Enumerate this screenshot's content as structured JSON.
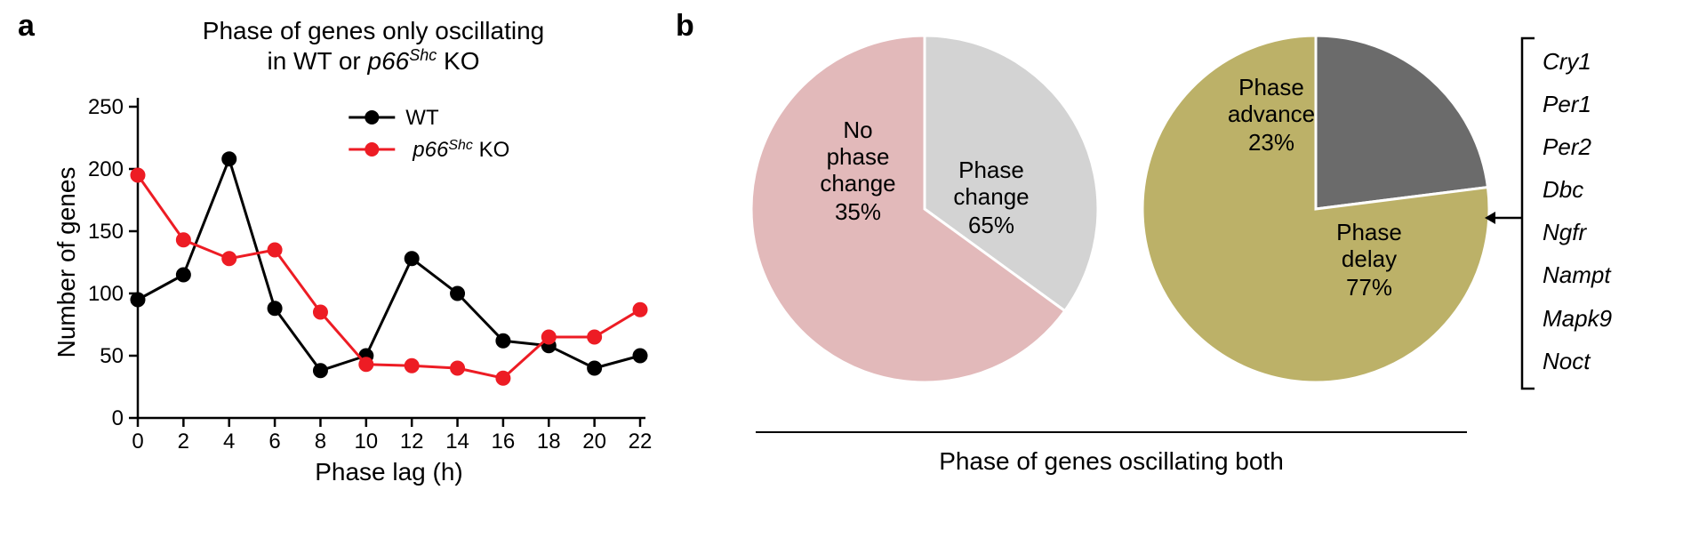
{
  "panelA": {
    "label": "a",
    "title_line1": "Phase of  genes only oscillating",
    "title_line2": "in WT or ",
    "title_gene": "p66",
    "title_gene_sup": "Shc",
    "title_after": " KO",
    "x_label": "Phase lag (h)",
    "y_label": "Number of genes",
    "xlim": [
      0,
      22
    ],
    "ylim": [
      0,
      250
    ],
    "xticks": [
      0,
      2,
      4,
      6,
      8,
      10,
      12,
      14,
      16,
      18,
      20,
      22
    ],
    "yticks": [
      0,
      50,
      100,
      150,
      200,
      250
    ],
    "series": [
      {
        "name": "WT",
        "color": "#000000",
        "marker_fill": "#000000",
        "marker_r": 8,
        "line_w": 3,
        "x": [
          0,
          2,
          4,
          6,
          8,
          10,
          12,
          14,
          16,
          18,
          20,
          22
        ],
        "y": [
          95,
          115,
          208,
          88,
          38,
          50,
          128,
          100,
          62,
          58,
          40,
          50
        ]
      },
      {
        "name": "KO",
        "legend_prefix": "p66",
        "legend_sup": "Shc",
        "legend_suffix": " KO",
        "color": "#ed1c24",
        "marker_fill": "#ed1c24",
        "marker_r": 8,
        "line_w": 3,
        "x": [
          0,
          2,
          4,
          6,
          8,
          10,
          12,
          14,
          16,
          18,
          20,
          22
        ],
        "y": [
          195,
          143,
          128,
          135,
          85,
          43,
          42,
          40,
          32,
          65,
          65,
          87
        ]
      }
    ],
    "axis_color": "#000000",
    "axis_w": 2.5,
    "tick_len": 10,
    "tick_fontsize": 24,
    "label_fontsize": 28,
    "legend_fontsize": 24
  },
  "panelB": {
    "label": "b",
    "caption": "Phase of genes oscillating both",
    "pie1": {
      "slices": [
        {
          "label_line1": "No",
          "label_line2": "phase",
          "label_line3": "change",
          "value": 35,
          "pct_text": "35%",
          "color": "#d3d3d3"
        },
        {
          "label_line1": "Phase",
          "label_line2": "change",
          "label_line3": "",
          "value": 65,
          "pct_text": "65%",
          "color": "#e2b9ba"
        }
      ],
      "stroke": "#ffffff",
      "stroke_w": 3,
      "label_fontsize": 26
    },
    "pie2": {
      "slices": [
        {
          "label_line1": "Phase",
          "label_line2": "advance",
          "label_line3": "",
          "value": 23,
          "pct_text": "23%",
          "color": "#6b6b6b"
        },
        {
          "label_line1": "Phase",
          "label_line2": "delay",
          "label_line3": "",
          "value": 77,
          "pct_text": "77%",
          "color": "#bcb168"
        }
      ],
      "stroke": "#ffffff",
      "stroke_w": 3,
      "label_fontsize": 26
    },
    "genes": [
      "Cry1",
      "Per1",
      "Per2",
      "Dbc",
      "Ngfr",
      "Nampt",
      "Mapk9",
      "Noct"
    ],
    "gene_fontsize": 26,
    "arrow_color": "#000000"
  }
}
